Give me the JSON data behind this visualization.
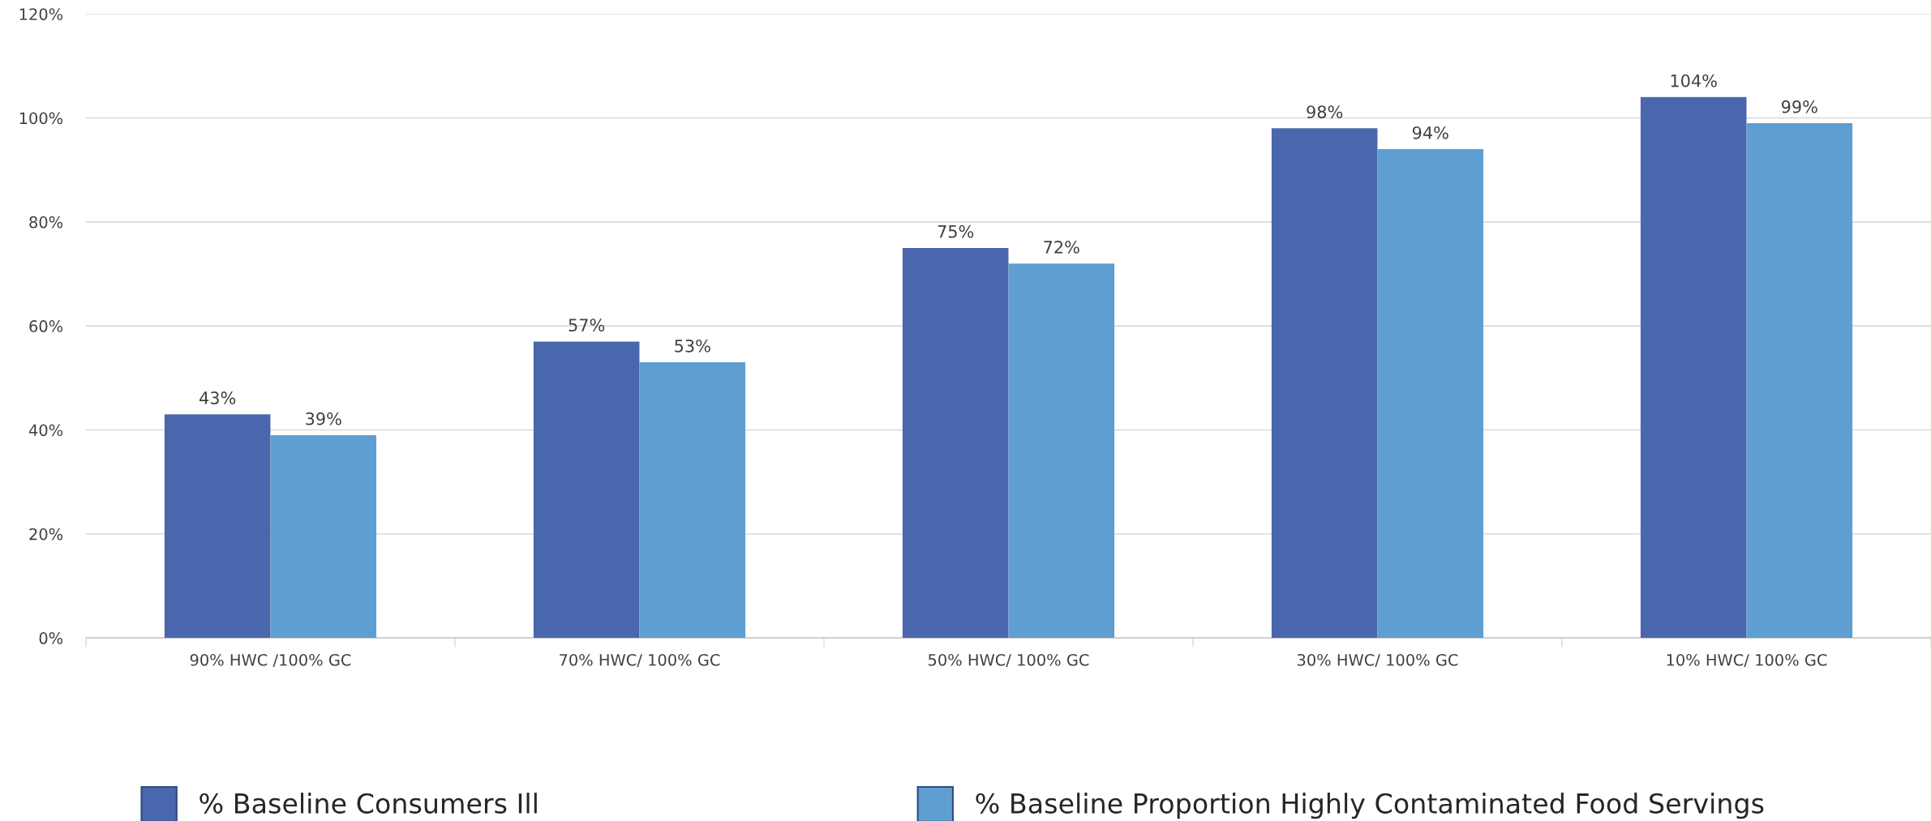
{
  "chart_data": {
    "type": "bar",
    "categories": [
      "90% HWC /100% GC",
      "70% HWC/ 100% GC",
      "50% HWC/ 100% GC",
      "30% HWC/ 100% GC",
      "10% HWC/ 100% GC"
    ],
    "series": [
      {
        "name": "% Baseline Consumers Ill",
        "color": "#4a67ad",
        "values": [
          43,
          57,
          75,
          98,
          104
        ]
      },
      {
        "name": "% Baseline Proportion Highly Contaminated Food Servings",
        "color": "#5f9ed1",
        "values": [
          39,
          53,
          72,
          94,
          99
        ]
      }
    ],
    "ylim": [
      0,
      120
    ],
    "yticks": [
      {
        "value": 0,
        "label": "0%"
      },
      {
        "value": 20,
        "label": "20%"
      },
      {
        "value": 40,
        "label": "40%"
      },
      {
        "value": 60,
        "label": "60%"
      },
      {
        "value": 80,
        "label": "80%"
      },
      {
        "value": 100,
        "label": "100%"
      },
      {
        "value": 120,
        "label": "120%"
      }
    ],
    "value_labels": [
      [
        "43%",
        "57%",
        "75%",
        "98%",
        "104%"
      ],
      [
        "39%",
        "53%",
        "72%",
        "94%",
        "99%"
      ]
    ],
    "grid": "y",
    "legend": "bottom"
  }
}
